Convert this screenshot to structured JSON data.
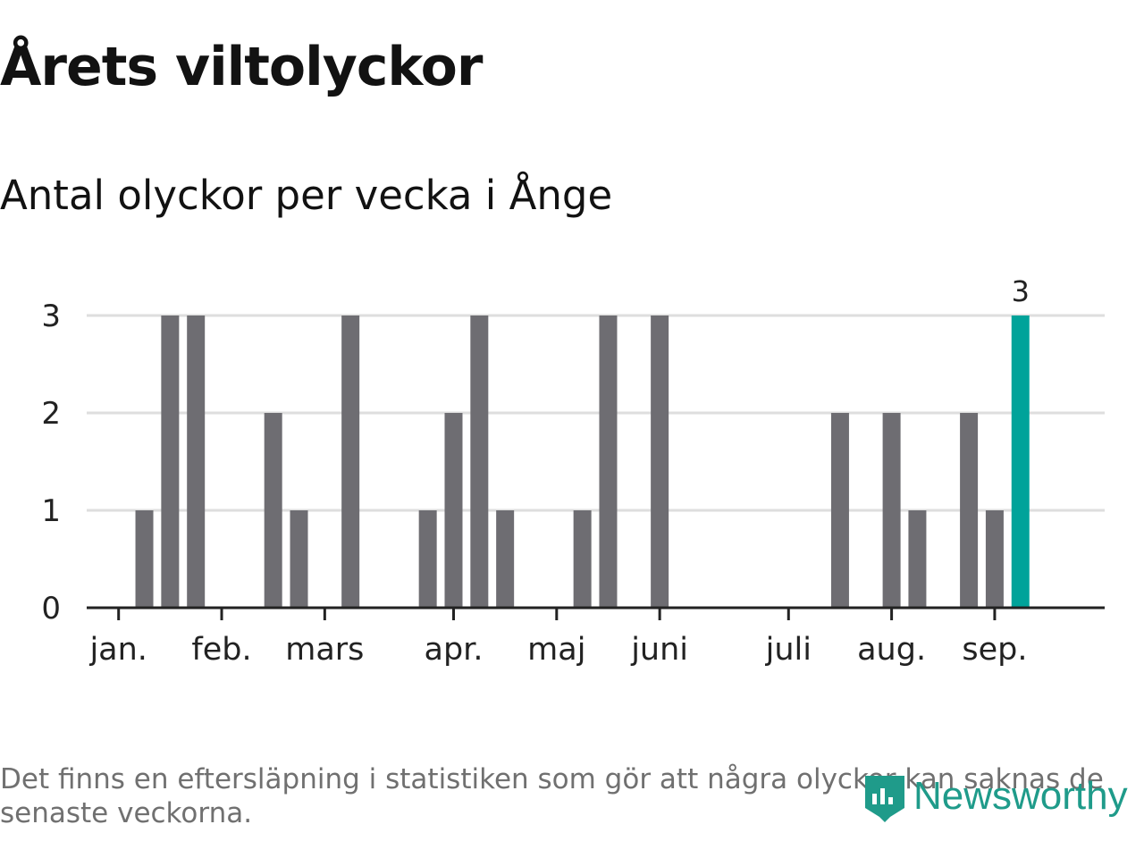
{
  "header": {
    "title": "Årets viltolyckor",
    "subtitle": "Antal olyckor per vecka i Ånge"
  },
  "footnote": "Det finns en eftersläpning i statistiken som gör att några olyckor kan saknas de senaste veckorna.",
  "logo": {
    "text": "Newsworthy",
    "icon": "newsworthy-logo-icon",
    "color": "#1f9b8a"
  },
  "chart_data": {
    "type": "bar",
    "title": "Årets viltolyckor",
    "subtitle": "Antal olyckor per vecka i Ånge",
    "xlabel": "",
    "ylabel": "",
    "ylim": [
      0,
      3
    ],
    "yticks": [
      0,
      1,
      2,
      3
    ],
    "grid": true,
    "bar_color": "#6e6d72",
    "highlight_color": "#00a39a",
    "month_ticks": [
      {
        "label": "jan.",
        "week": 1
      },
      {
        "label": "feb.",
        "week": 5
      },
      {
        "label": "mars",
        "week": 9
      },
      {
        "label": "apr.",
        "week": 14
      },
      {
        "label": "maj",
        "week": 18
      },
      {
        "label": "juni",
        "week": 22
      },
      {
        "label": "juli",
        "week": 27
      },
      {
        "label": "aug.",
        "week": 31
      },
      {
        "label": "sep.",
        "week": 35
      }
    ],
    "weeks": [
      1,
      2,
      3,
      4,
      5,
      6,
      7,
      8,
      9,
      10,
      11,
      12,
      13,
      14,
      15,
      16,
      17,
      18,
      19,
      20,
      21,
      22,
      23,
      24,
      25,
      26,
      27,
      28,
      29,
      30,
      31,
      32,
      33,
      34,
      35,
      36
    ],
    "values": [
      0,
      1,
      3,
      3,
      0,
      0,
      2,
      1,
      0,
      3,
      0,
      0,
      1,
      2,
      3,
      1,
      0,
      0,
      1,
      3,
      0,
      3,
      0,
      0,
      0,
      0,
      0,
      0,
      2,
      0,
      2,
      1,
      0,
      2,
      1,
      3
    ],
    "highlight_index": 35,
    "highlight_label": "3"
  }
}
